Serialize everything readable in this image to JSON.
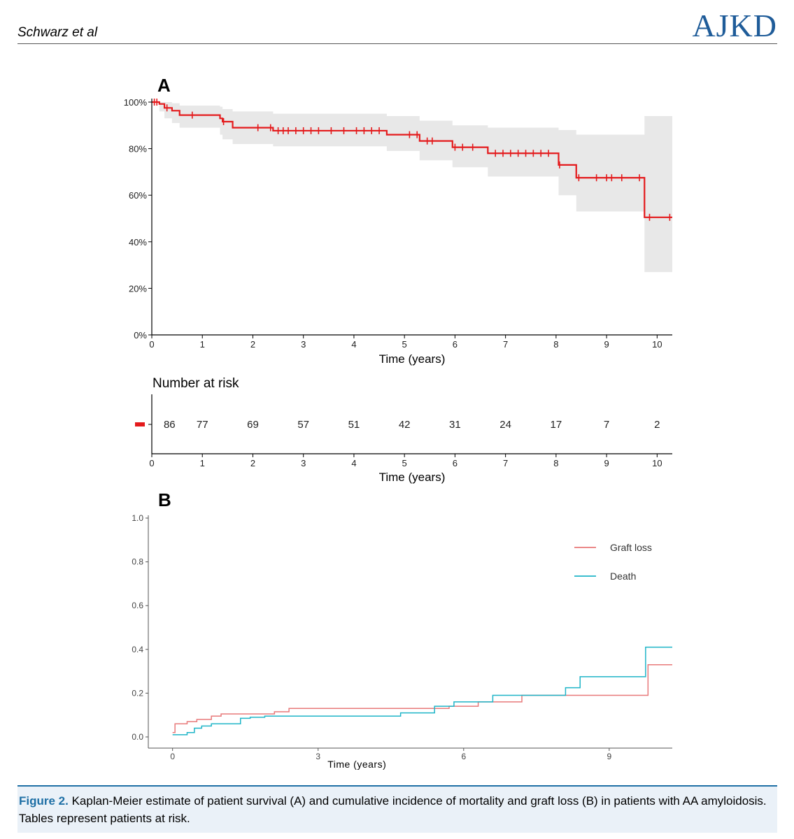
{
  "header": {
    "authors": "Schwarz et al",
    "journal": "AJKD"
  },
  "caption": {
    "label": "Figure 2.",
    "text": "Kaplan-Meier estimate of patient survival (A) and cumulative incidence of mortality and graft loss (B) in patients with AA amyloidosis. Tables represent patients at risk."
  },
  "colors": {
    "survival": "#e41a1c",
    "graft_loss": "#e8797a",
    "death": "#1fb5c8",
    "ci_band": "#e8e8e8",
    "brand": "#1f5c99"
  },
  "chart_data": [
    {
      "panel": "A",
      "type": "line",
      "title": "",
      "xlabel": "Time (years)",
      "ylabel": "",
      "xlim": [
        0,
        10.3
      ],
      "ylim": [
        0,
        100
      ],
      "x_ticks": [
        0,
        1,
        2,
        3,
        4,
        5,
        6,
        7,
        8,
        9,
        10
      ],
      "y_ticks": [
        "0%",
        "20%",
        "40%",
        "60%",
        "80%",
        "100%"
      ],
      "series": [
        {
          "name": "Patient survival",
          "step_times": [
            0,
            0.15,
            0.25,
            0.4,
            0.55,
            1.35,
            1.4,
            1.6,
            2.4,
            4.65,
            5.3,
            5.95,
            6.65,
            8.05,
            8.4,
            9.75,
            10.3
          ],
          "step_values": [
            100,
            99.2,
            97.5,
            96.3,
            94.4,
            93.0,
            91.6,
            89.0,
            87.7,
            86.0,
            83.3,
            80.6,
            78.0,
            73.0,
            67.5,
            50.5,
            50.5
          ],
          "ci_lower": [
            100,
            96,
            93,
            91,
            89,
            86,
            84,
            82,
            81,
            79,
            75,
            72,
            68,
            60,
            53,
            27,
            27
          ],
          "ci_upper": [
            100,
            100,
            100,
            99.5,
            98.5,
            98,
            97,
            96,
            95,
            94,
            92,
            90,
            89,
            88,
            86,
            94,
            94
          ],
          "censor_times": [
            0.05,
            0.1,
            0.3,
            0.8,
            1.42,
            2.1,
            2.35,
            2.5,
            2.6,
            2.7,
            2.85,
            3.0,
            3.15,
            3.3,
            3.55,
            3.8,
            4.05,
            4.2,
            4.35,
            4.5,
            5.1,
            5.25,
            5.45,
            5.55,
            6.0,
            6.15,
            6.35,
            6.8,
            6.95,
            7.1,
            7.25,
            7.4,
            7.55,
            7.7,
            7.85,
            8.07,
            8.45,
            8.8,
            9.0,
            9.1,
            9.3,
            9.65,
            9.85,
            10.25
          ]
        }
      ],
      "risk_table": {
        "title": "Number at risk",
        "xlabel": "Time (years)",
        "times": [
          0.35,
          1,
          2,
          3,
          4,
          5,
          6,
          7,
          8,
          9,
          10
        ],
        "counts": [
          "86",
          "77",
          "69",
          "57",
          "51",
          "42",
          "31",
          "24",
          "17",
          "7",
          "2"
        ]
      }
    },
    {
      "panel": "B",
      "type": "line",
      "title": "",
      "xlabel": "Time (years)",
      "ylabel": "",
      "xlim": [
        -0.5,
        10.3
      ],
      "ylim": [
        0,
        1
      ],
      "x_ticks": [
        "0",
        "3",
        "6",
        "9"
      ],
      "y_ticks": [
        "0.0",
        "0.2",
        "0.4",
        "0.6",
        "0.8",
        "1.0"
      ],
      "legend": {
        "position": "top-right"
      },
      "series": [
        {
          "name": "Graft loss",
          "step_times": [
            0,
            0.05,
            0.3,
            0.5,
            0.8,
            1.0,
            2.1,
            2.4,
            5.7,
            6.3,
            7.2,
            9.8,
            10.3
          ],
          "step_values": [
            0.02,
            0.06,
            0.07,
            0.08,
            0.095,
            0.105,
            0.115,
            0.13,
            0.14,
            0.16,
            0.19,
            0.33,
            0.33
          ]
        },
        {
          "name": "Death",
          "step_times": [
            0,
            0.3,
            0.45,
            0.6,
            0.8,
            1.4,
            1.6,
            1.9,
            4.7,
            5.4,
            5.8,
            6.6,
            7.3,
            8.1,
            8.4,
            9.75,
            10.3
          ],
          "step_values": [
            0.01,
            0.02,
            0.04,
            0.05,
            0.06,
            0.085,
            0.09,
            0.095,
            0.11,
            0.14,
            0.16,
            0.19,
            0.19,
            0.225,
            0.275,
            0.41,
            0.41
          ]
        }
      ]
    }
  ]
}
